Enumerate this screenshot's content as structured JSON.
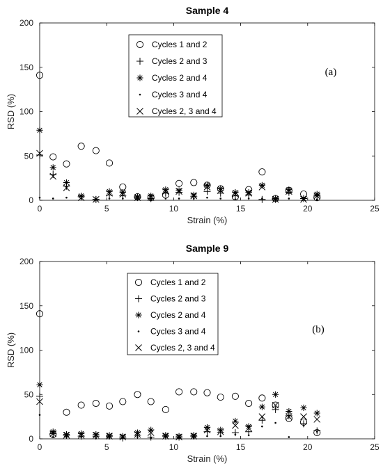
{
  "chart_data": [
    {
      "type": "scatter",
      "title": "Sample 4",
      "panel_label": "(a)",
      "xlabel": "Strain (%)",
      "ylabel": "RSD (%)",
      "xlim": [
        0,
        25
      ],
      "ylim": [
        0,
        200
      ],
      "xticks": [
        0,
        5,
        10,
        15,
        20,
        25
      ],
      "yticks": [
        0,
        50,
        100,
        150,
        200
      ],
      "grid": false,
      "legend_position": "top-center",
      "series": [
        {
          "name": "Cycles 1 and 2",
          "marker": "circle",
          "x": [
            0,
            1,
            2,
            3.1,
            4.2,
            5.2,
            6.2,
            7.3,
            8.3,
            9.4,
            10.4,
            11.5,
            12.5,
            13.5,
            14.6,
            15.6,
            16.6,
            17.6,
            18.6,
            19.7,
            20.7
          ],
          "y": [
            141,
            49,
            41,
            61,
            56,
            42,
            15,
            4,
            3,
            6,
            19,
            20,
            17,
            13,
            4,
            12,
            32,
            2,
            11,
            7,
            3
          ]
        },
        {
          "name": "Cycles 2 and 3",
          "marker": "plus",
          "x": [
            0,
            1,
            2,
            3.1,
            4.2,
            5.2,
            6.2,
            7.3,
            8.3,
            9.4,
            10.4,
            11.5,
            12.5,
            13.5,
            14.6,
            15.6,
            16.6,
            17.6,
            18.6,
            19.7,
            20.7
          ],
          "y": [
            51,
            29,
            16,
            4,
            1,
            6,
            5,
            3,
            2,
            8,
            9,
            4,
            10,
            8,
            5,
            6,
            1,
            1,
            9,
            2,
            5
          ]
        },
        {
          "name": "Cycles 2 and 4",
          "marker": "asterisk",
          "x": [
            0,
            1,
            2,
            3.1,
            4.2,
            5.2,
            6.2,
            7.3,
            8.3,
            9.4,
            10.4,
            11.5,
            12.5,
            13.5,
            14.6,
            15.6,
            16.6,
            17.6,
            18.6,
            19.7,
            20.7
          ],
          "y": [
            79,
            37,
            20,
            5,
            1,
            10,
            9,
            4,
            5,
            12,
            11,
            6,
            17,
            13,
            9,
            9,
            17,
            2,
            12,
            2,
            7
          ]
        },
        {
          "name": "Cycles 3 and 4",
          "marker": "dot",
          "x": [
            0,
            1,
            2,
            3.1,
            4.2,
            5.2,
            6.2,
            7.3,
            8.3,
            9.4,
            10.4,
            11.5,
            12.5,
            13.5,
            14.6,
            15.6,
            16.6,
            17.6,
            18.6,
            19.7,
            20.7
          ],
          "y": [
            3,
            2,
            3,
            2,
            1,
            2,
            2,
            1,
            1,
            2,
            2,
            2,
            3,
            2,
            1,
            2,
            2,
            1,
            2,
            1,
            1
          ]
        },
        {
          "name": "Cycles 2, 3 and 4",
          "marker": "cross",
          "x": [
            0,
            1,
            2,
            3.1,
            4.2,
            5.2,
            6.2,
            7.3,
            8.3,
            9.4,
            10.4,
            11.5,
            12.5,
            13.5,
            14.6,
            15.6,
            16.6,
            17.6,
            18.6,
            19.7,
            20.7
          ],
          "y": [
            53,
            27,
            14,
            3,
            1,
            8,
            7,
            3,
            3,
            10,
            10,
            5,
            15,
            11,
            7,
            8,
            15,
            1,
            10,
            1,
            5
          ]
        }
      ]
    },
    {
      "type": "scatter",
      "title": "Sample 9",
      "panel_label": "(b)",
      "xlabel": "Strain (%)",
      "ylabel": "RSD (%)",
      "xlim": [
        0,
        25
      ],
      "ylim": [
        0,
        200
      ],
      "xticks": [
        0,
        5,
        10,
        15,
        20,
        25
      ],
      "yticks": [
        0,
        50,
        100,
        150,
        200
      ],
      "grid": false,
      "legend_position": "top-center",
      "series": [
        {
          "name": "Cycles 1 and 2",
          "marker": "circle",
          "x": [
            0,
            1,
            2,
            3.1,
            4.2,
            5.2,
            6.2,
            7.3,
            8.3,
            9.4,
            10.4,
            11.5,
            12.5,
            13.5,
            14.6,
            15.6,
            16.6,
            17.6,
            18.6,
            19.7,
            20.7
          ],
          "y": [
            141,
            5,
            30,
            38,
            40,
            37,
            42,
            50,
            42,
            33,
            53,
            53,
            52,
            47,
            48,
            40,
            46,
            38,
            23,
            19,
            7
          ]
        },
        {
          "name": "Cycles 2 and 3",
          "marker": "plus",
          "x": [
            0,
            1,
            2,
            3.1,
            4.2,
            5.2,
            6.2,
            7.3,
            8.3,
            9.4,
            10.4,
            11.5,
            12.5,
            13.5,
            14.6,
            15.6,
            16.6,
            17.6,
            18.6,
            19.7,
            20.7
          ],
          "y": [
            48,
            6,
            4,
            3,
            3,
            3,
            1,
            4,
            2,
            3,
            2,
            3,
            8,
            7,
            7,
            8,
            21,
            33,
            26,
            17,
            9
          ]
        },
        {
          "name": "Cycles 2 and 4",
          "marker": "asterisk",
          "x": [
            0,
            1,
            2,
            3.1,
            4.2,
            5.2,
            6.2,
            7.3,
            8.3,
            9.4,
            10.4,
            11.5,
            12.5,
            13.5,
            14.6,
            15.6,
            16.6,
            17.6,
            18.6,
            19.7,
            20.7
          ],
          "y": [
            61,
            8,
            5,
            6,
            5,
            4,
            3,
            7,
            10,
            4,
            3,
            4,
            13,
            10,
            20,
            14,
            36,
            50,
            31,
            35,
            29
          ]
        },
        {
          "name": "Cycles 3 and 4",
          "marker": "dot",
          "x": [
            0,
            1,
            2,
            3.1,
            4.2,
            5.2,
            6.2,
            7.3,
            8.3,
            9.4,
            10.4,
            11.5,
            12.5,
            13.5,
            14.6,
            15.6,
            16.6,
            17.6,
            18.6,
            19.7,
            20.7
          ],
          "y": [
            27,
            2,
            2,
            2,
            1,
            1,
            1,
            2,
            1,
            2,
            1,
            1,
            3,
            3,
            5,
            4,
            14,
            18,
            2,
            15,
            8
          ]
        },
        {
          "name": "Cycles 2, 3 and 4",
          "marker": "cross",
          "x": [
            0,
            1,
            2,
            3.1,
            4.2,
            5.2,
            6.2,
            7.3,
            8.3,
            9.4,
            10.4,
            11.5,
            12.5,
            13.5,
            14.6,
            15.6,
            16.6,
            17.6,
            18.6,
            19.7,
            20.7
          ],
          "y": [
            42,
            6,
            4,
            4,
            4,
            3,
            2,
            5,
            7,
            3,
            2,
            3,
            10,
            8,
            15,
            12,
            25,
            38,
            25,
            25,
            22
          ]
        }
      ]
    }
  ]
}
